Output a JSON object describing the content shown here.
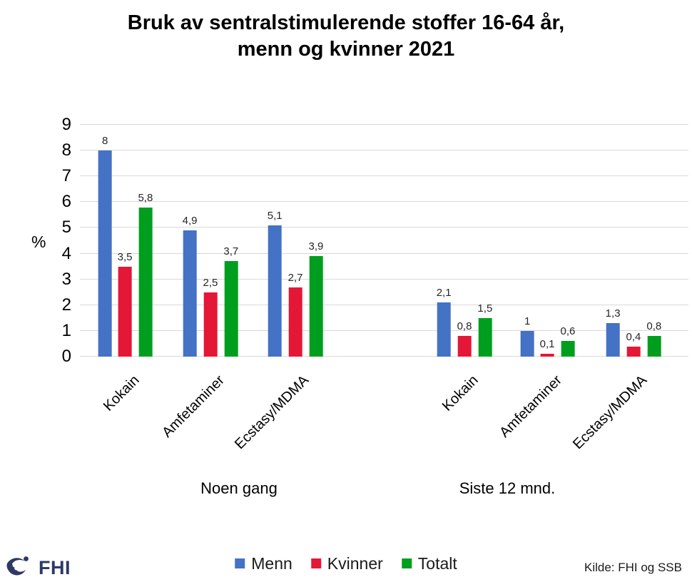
{
  "title": {
    "line1": "Bruk av sentralstimulerende stoffer 16-64 år,",
    "line2": "menn og kvinner 2021"
  },
  "colors": {
    "menn": "#4472C4",
    "kvinner": "#E41737",
    "totalt": "#009E1E",
    "gridline": "#D9D9D9",
    "logo_navy": "#2E3A64"
  },
  "legend": {
    "items": [
      {
        "label": "Menn",
        "color": "#4472C4"
      },
      {
        "label": "Kvinner",
        "color": "#E41737"
      },
      {
        "label": "Totalt",
        "color": "#009E1E"
      }
    ]
  },
  "logo": {
    "text": "FHI"
  },
  "source": "Kilde: FHI og SSB",
  "chart_data": {
    "type": "bar",
    "title": "Bruk av sentralstimulerende stoffer 16-64 år, menn og kvinner 2021",
    "xlabel": "",
    "ylabel": "%",
    "ylim": [
      0,
      9
    ],
    "y_ticks": [
      0,
      1,
      2,
      3,
      4,
      5,
      6,
      7,
      8,
      9
    ],
    "grid": true,
    "legend_position": "bottom",
    "groups": [
      {
        "label": "Noen gang",
        "categories": [
          "Kokain",
          "Amfetaminer",
          "Ecstasy/MDMA"
        ],
        "series": [
          {
            "name": "Menn",
            "values": [
              8,
              4.9,
              5.1
            ],
            "labels": [
              "8",
              "4,9",
              "5,1"
            ]
          },
          {
            "name": "Kvinner",
            "values": [
              3.5,
              2.5,
              2.7
            ],
            "labels": [
              "3,5",
              "2,5",
              "2,7"
            ]
          },
          {
            "name": "Totalt",
            "values": [
              5.8,
              3.7,
              3.9
            ],
            "labels": [
              "5,8",
              "3,7",
              "3,9"
            ]
          }
        ]
      },
      {
        "label": "Siste 12 mnd.",
        "categories": [
          "Kokain",
          "Amfetaminer",
          "Ecstasy/MDMA"
        ],
        "series": [
          {
            "name": "Menn",
            "values": [
              2.1,
              1,
              1.3
            ],
            "labels": [
              "2,1",
              "1",
              "1,3"
            ]
          },
          {
            "name": "Kvinner",
            "values": [
              0.8,
              0.1,
              0.4
            ],
            "labels": [
              "0,8",
              "0,1",
              "0,4"
            ]
          },
          {
            "name": "Totalt",
            "values": [
              1.5,
              0.6,
              0.8
            ],
            "labels": [
              "1,5",
              "0,6",
              "0,8"
            ]
          }
        ]
      }
    ]
  }
}
